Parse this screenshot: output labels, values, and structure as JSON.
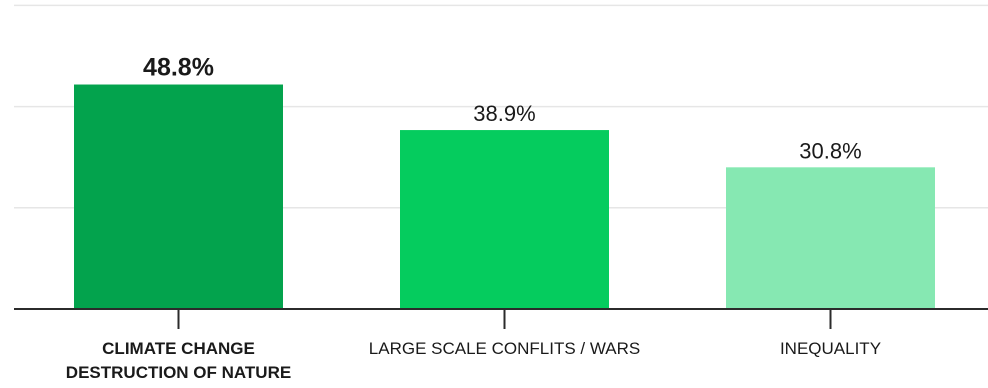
{
  "chart_data": {
    "type": "bar",
    "title": "",
    "xlabel": "",
    "ylabel": "",
    "ylim": [
      0,
      60
    ],
    "grid": true,
    "categories": [
      [
        "CLIMATE CHANGE",
        "DESTRUCTION OF NATURE"
      ],
      [
        "LARGE SCALE CONFLITS / WARS"
      ],
      [
        "INEQUALITY"
      ]
    ],
    "values": [
      48.8,
      38.9,
      30.8
    ],
    "value_labels": [
      "48.8%",
      "38.9%",
      "30.8%"
    ],
    "bar_colors": [
      "#03a34d",
      "#05cc5e",
      "#86e8b2"
    ],
    "highlight_index": 0,
    "highlight_color": "#03a34d"
  }
}
